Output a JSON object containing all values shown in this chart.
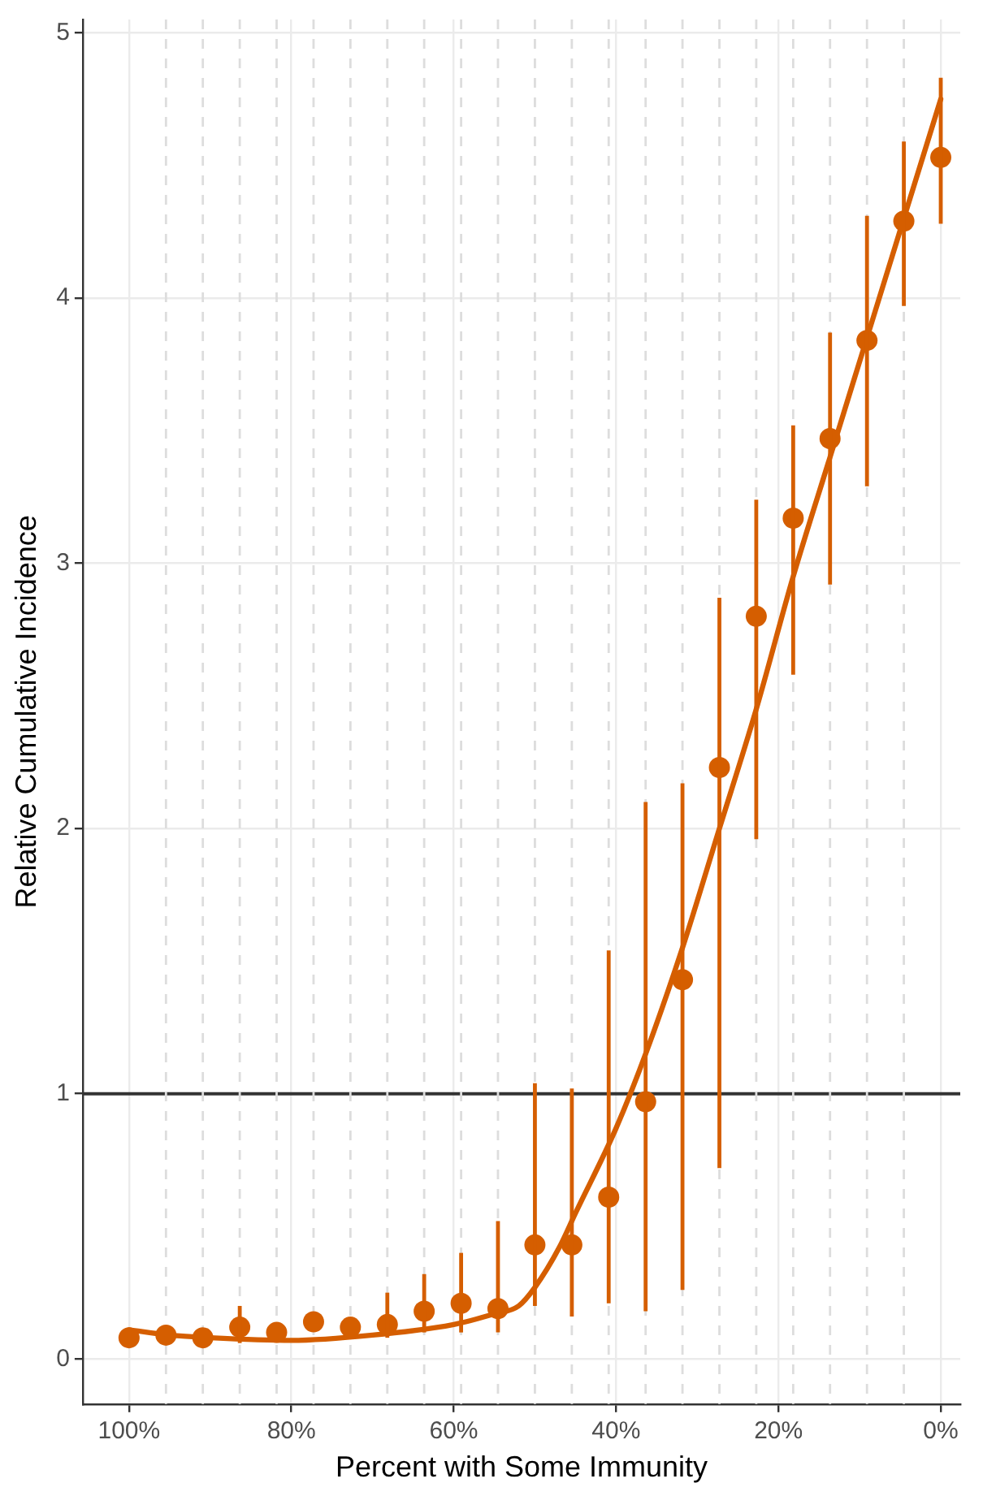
{
  "chart_data": {
    "type": "scatter",
    "xlabel": "Percent with Some Immunity",
    "ylabel": "Relative Cumulative Incidence",
    "xlim": [
      105.7,
      -2.4
    ],
    "ylim": [
      -0.17,
      5.05
    ],
    "xticks": [
      {
        "value": 100,
        "label": "100%"
      },
      {
        "value": 80,
        "label": "80%"
      },
      {
        "value": 60,
        "label": "60%"
      },
      {
        "value": 40,
        "label": "40%"
      },
      {
        "value": 20,
        "label": "20%"
      },
      {
        "value": 0,
        "label": "0%"
      }
    ],
    "yticks": [
      0,
      1,
      2,
      3,
      4,
      5
    ],
    "grid": true,
    "legend": false,
    "marker": "circle",
    "x": [
      100,
      95.45,
      90.91,
      86.36,
      81.82,
      77.27,
      72.73,
      68.18,
      63.64,
      59.09,
      54.55,
      50,
      45.45,
      40.91,
      36.36,
      31.82,
      27.27,
      22.73,
      18.18,
      13.64,
      9.09,
      4.55,
      0
    ],
    "series": [
      {
        "color": "#d55e00",
        "values": [
          0.08,
          0.09,
          0.08,
          0.12,
          0.1,
          0.14,
          0.12,
          0.13,
          0.18,
          0.21,
          0.19,
          0.43,
          0.43,
          0.61,
          0.97,
          1.43,
          2.23,
          2.8,
          3.17,
          3.47,
          3.84,
          4.29,
          4.53
        ],
        "errors": [
          null,
          null,
          null,
          [
            0.06,
            0.2
          ],
          null,
          null,
          null,
          [
            0.08,
            0.25
          ],
          [
            0.1,
            0.32
          ],
          [
            0.1,
            0.4
          ],
          [
            0.1,
            0.52
          ],
          [
            0.2,
            1.04
          ],
          [
            0.16,
            1.02
          ],
          [
            0.21,
            1.54
          ],
          [
            0.18,
            2.1
          ],
          [
            0.26,
            2.17
          ],
          [
            0.72,
            2.87
          ],
          [
            1.96,
            3.24
          ],
          [
            2.58,
            3.52
          ],
          [
            2.92,
            3.87
          ],
          [
            3.29,
            4.31
          ],
          [
            3.97,
            4.59
          ],
          [
            4.28,
            4.83
          ]
        ]
      },
      {
        "type": "line",
        "color": "#d55e00",
        "marker": "none",
        "x": [
          100,
          95,
          90,
          80,
          70,
          60,
          55,
          52,
          50,
          47,
          45,
          40,
          36.36,
          31.82,
          27.27,
          22.73,
          18.18,
          13.64,
          9.09,
          4.55,
          0
        ],
        "values": [
          0.11,
          0.09,
          0.08,
          0.07,
          0.09,
          0.13,
          0.17,
          0.2,
          0.27,
          0.42,
          0.55,
          0.87,
          1.15,
          1.55,
          2.0,
          2.45,
          2.95,
          3.4,
          3.85,
          4.3,
          4.75
        ]
      }
    ],
    "ref_lines": [
      {
        "axis": "y",
        "value": 1,
        "color": "#333333",
        "line_style": "solid"
      },
      {
        "axis": "x",
        "value": 95.45,
        "color": "#dddddd",
        "line_style": "dashed"
      },
      {
        "axis": "x",
        "value": 90.91,
        "color": "#dddddd",
        "line_style": "dashed"
      },
      {
        "axis": "x",
        "value": 86.36,
        "color": "#dddddd",
        "line_style": "dashed"
      },
      {
        "axis": "x",
        "value": 81.82,
        "color": "#dddddd",
        "line_style": "dashed"
      },
      {
        "axis": "x",
        "value": 77.27,
        "color": "#dddddd",
        "line_style": "dashed"
      },
      {
        "axis": "x",
        "value": 72.73,
        "color": "#dddddd",
        "line_style": "dashed"
      },
      {
        "axis": "x",
        "value": 68.18,
        "color": "#dddddd",
        "line_style": "dashed"
      },
      {
        "axis": "x",
        "value": 63.64,
        "color": "#dddddd",
        "line_style": "dashed"
      },
      {
        "axis": "x",
        "value": 59.09,
        "color": "#dddddd",
        "line_style": "dashed"
      },
      {
        "axis": "x",
        "value": 54.55,
        "color": "#dddddd",
        "line_style": "dashed"
      },
      {
        "axis": "x",
        "value": 50,
        "color": "#dddddd",
        "line_style": "dashed"
      },
      {
        "axis": "x",
        "value": 45.45,
        "color": "#dddddd",
        "line_style": "dashed"
      },
      {
        "axis": "x",
        "value": 40.91,
        "color": "#dddddd",
        "line_style": "dashed"
      },
      {
        "axis": "x",
        "value": 36.36,
        "color": "#dddddd",
        "line_style": "dashed"
      },
      {
        "axis": "x",
        "value": 31.82,
        "color": "#dddddd",
        "line_style": "dashed"
      },
      {
        "axis": "x",
        "value": 27.27,
        "color": "#dddddd",
        "line_style": "dashed"
      },
      {
        "axis": "x",
        "value": 22.73,
        "color": "#dddddd",
        "line_style": "dashed"
      },
      {
        "axis": "x",
        "value": 18.18,
        "color": "#dddddd",
        "line_style": "dashed"
      },
      {
        "axis": "x",
        "value": 13.64,
        "color": "#dddddd",
        "line_style": "dashed"
      },
      {
        "axis": "x",
        "value": 9.09,
        "color": "#dddddd",
        "line_style": "dashed"
      },
      {
        "axis": "x",
        "value": 4.55,
        "color": "#dddddd",
        "line_style": "dashed"
      }
    ]
  }
}
